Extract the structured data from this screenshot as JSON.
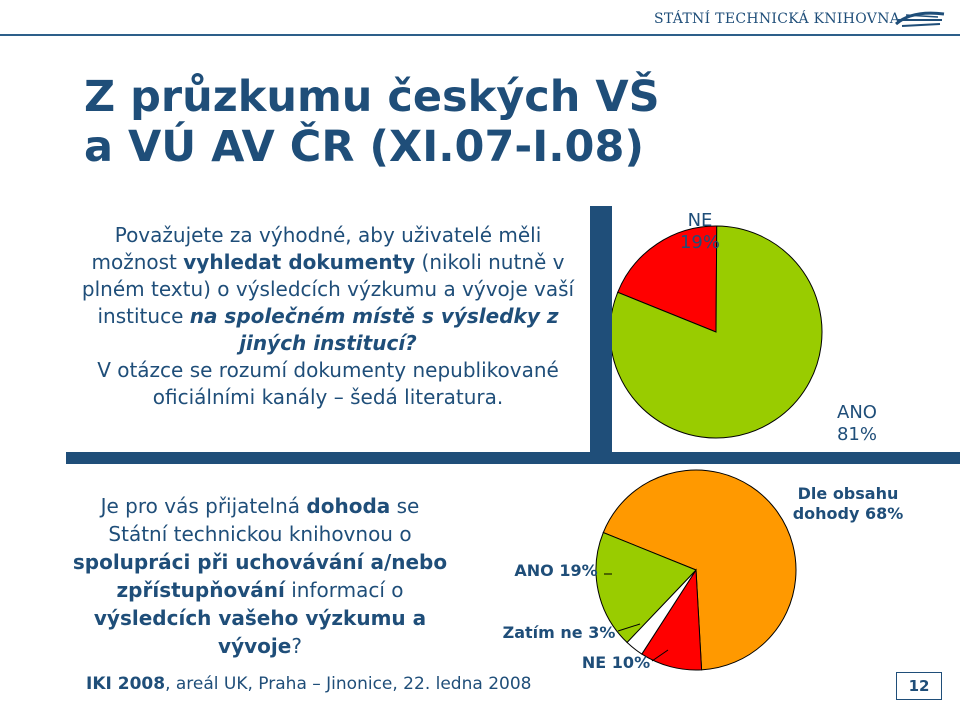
{
  "header": {
    "library": "STÁTNÍ TECHNICKÁ KNIHOVNA"
  },
  "title": {
    "line1": "Z průzkumu českých VŠ",
    "line2": "a VÚ AV ČR (XI.07-I.08)"
  },
  "question1": {
    "p1": "Považujete za výhodné, aby uživatelé měli možnost ",
    "b1": "vyhledat dokumenty",
    "p2": " (nikoli nutně v plném textu) o výsledcích výzkumu a vývoje vaší instituce ",
    "b2": "na společném místě s výsledky z jiných institucí?",
    "note": "V otázce se rozumí dokumenty nepublikované oficiálními kanály – šedá literatura."
  },
  "question2": {
    "p1": "Je pro vás přijatelná ",
    "b1": "dohoda",
    "p2": " se Státní technickou knihovnou o ",
    "b2": "spolupráci při uchovávání a/nebo zpřístupňování",
    "p3": " informací o ",
    "b3": "výsledcích vašeho výzkumu a vývoje",
    "p4": "?"
  },
  "chart_data": [
    {
      "type": "pie",
      "slices": [
        {
          "label": "ANO",
          "value": 81,
          "display": "81%",
          "color": "#99cc00"
        },
        {
          "label": "NE",
          "value": 19,
          "display": "19%",
          "color": "#ff0000"
        }
      ]
    },
    {
      "type": "pie",
      "slices": [
        {
          "label": "Dle obsahu dohody",
          "value": 68,
          "display": "68%",
          "color": "#ff9900"
        },
        {
          "label": "NE",
          "value": 10,
          "display": "10%",
          "color": "#ff0000"
        },
        {
          "label": "Zatím ne",
          "value": 3,
          "display": "3%",
          "color": "#ffffff"
        },
        {
          "label": "ANO",
          "value": 19,
          "display": "19%",
          "color": "#99cc00"
        }
      ]
    }
  ],
  "labels": {
    "pie1_ne": "NE",
    "pie1_ne_pct": "19%",
    "pie1_ano": "ANO",
    "pie1_ano_pct": "81%",
    "pie2_dle": "Dle obsahu",
    "pie2_dle2": "dohody 68%",
    "pie2_ano": "ANO 19%",
    "pie2_zatim": "Zatím ne 3%",
    "pie2_ne": "NE 10%"
  },
  "footer": {
    "bold": "IKI 2008",
    "rest": ", areál UK, Praha – Jinonice, 22. ledna 2008"
  },
  "page": {
    "number": "12"
  }
}
